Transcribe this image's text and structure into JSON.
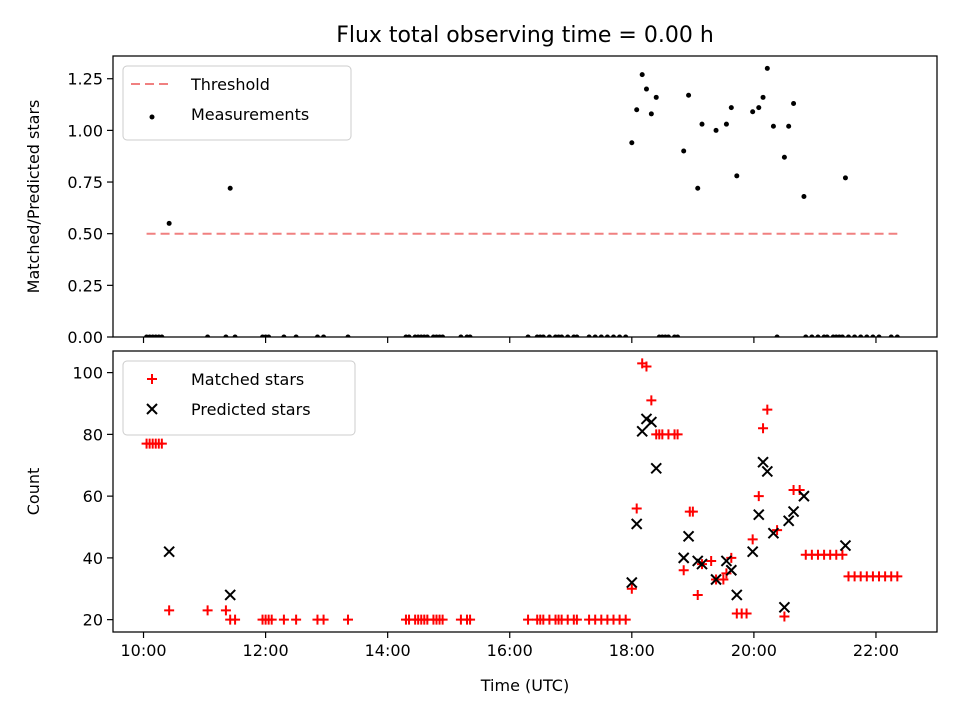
{
  "figure": {
    "title": "Flux total observing time = 0.00 h"
  },
  "chart_data": [
    {
      "type": "scatter",
      "ylabel": "Matched/Predicted stars",
      "xlabel": "",
      "xlim": [
        9.5,
        23.0
      ],
      "ylim": [
        0.0,
        1.36
      ],
      "yticks": [
        0.0,
        0.25,
        0.5,
        0.75,
        1.0,
        1.25
      ],
      "ytick_labels": [
        "0.00",
        "0.25",
        "0.50",
        "0.75",
        "1.00",
        "1.25"
      ],
      "xticks": [
        10,
        12,
        14,
        16,
        18,
        20,
        22
      ],
      "show_xtick_labels": false,
      "grid": false,
      "legend": {
        "placement": "top-left"
      },
      "series": [
        {
          "name": "Threshold",
          "kind": "line",
          "style": "dashed",
          "color": "#f08080",
          "points": [
            [
              10.05,
              0.5
            ],
            [
              22.35,
              0.5
            ]
          ]
        },
        {
          "name": "Measurements",
          "kind": "scatter",
          "marker": "dot",
          "color": "#000000",
          "points": [
            [
              10.05,
              0
            ],
            [
              10.1,
              0
            ],
            [
              10.15,
              0
            ],
            [
              10.2,
              0
            ],
            [
              10.25,
              0
            ],
            [
              10.3,
              0
            ],
            [
              10.42,
              0.55
            ],
            [
              11.05,
              0
            ],
            [
              11.35,
              0
            ],
            [
              11.42,
              0.72
            ],
            [
              11.5,
              0
            ],
            [
              11.95,
              0
            ],
            [
              12.0,
              0
            ],
            [
              12.05,
              0
            ],
            [
              12.3,
              0
            ],
            [
              12.5,
              0
            ],
            [
              12.85,
              0
            ],
            [
              12.95,
              0
            ],
            [
              13.35,
              0
            ],
            [
              14.3,
              0
            ],
            [
              14.35,
              0
            ],
            [
              14.45,
              0
            ],
            [
              14.5,
              0
            ],
            [
              14.55,
              0
            ],
            [
              14.6,
              0
            ],
            [
              14.65,
              0
            ],
            [
              14.75,
              0
            ],
            [
              14.8,
              0
            ],
            [
              14.85,
              0
            ],
            [
              14.9,
              0
            ],
            [
              15.2,
              0
            ],
            [
              15.3,
              0
            ],
            [
              15.35,
              0
            ],
            [
              16.3,
              0
            ],
            [
              16.45,
              0
            ],
            [
              16.5,
              0
            ],
            [
              16.55,
              0
            ],
            [
              16.65,
              0
            ],
            [
              16.75,
              0
            ],
            [
              16.8,
              0
            ],
            [
              16.85,
              0
            ],
            [
              16.95,
              0
            ],
            [
              17.05,
              0
            ],
            [
              17.1,
              0
            ],
            [
              17.3,
              0
            ],
            [
              17.4,
              0
            ],
            [
              17.5,
              0
            ],
            [
              17.6,
              0
            ],
            [
              17.7,
              0
            ],
            [
              17.8,
              0
            ],
            [
              17.9,
              0
            ],
            [
              18.0,
              0.94
            ],
            [
              18.08,
              1.1
            ],
            [
              18.17,
              1.27
            ],
            [
              18.24,
              1.2
            ],
            [
              18.32,
              1.08
            ],
            [
              18.4,
              1.16
            ],
            [
              18.45,
              0
            ],
            [
              18.5,
              0
            ],
            [
              18.55,
              0
            ],
            [
              18.6,
              0
            ],
            [
              18.7,
              0
            ],
            [
              18.75,
              0
            ],
            [
              18.85,
              0.9
            ],
            [
              18.93,
              1.17
            ],
            [
              19.08,
              0.72
            ],
            [
              19.15,
              1.03
            ],
            [
              19.38,
              1.0
            ],
            [
              19.55,
              1.03
            ],
            [
              19.63,
              1.11
            ],
            [
              19.72,
              0.78
            ],
            [
              19.98,
              1.09
            ],
            [
              20.08,
              1.11
            ],
            [
              20.15,
              1.16
            ],
            [
              20.22,
              1.3
            ],
            [
              20.32,
              1.02
            ],
            [
              20.5,
              0.87
            ],
            [
              20.57,
              1.02
            ],
            [
              20.65,
              1.13
            ],
            [
              20.82,
              0.68
            ],
            [
              21.5,
              0.77
            ],
            [
              20.38,
              0
            ],
            [
              20.85,
              0
            ],
            [
              20.95,
              0
            ],
            [
              21.05,
              0
            ],
            [
              21.15,
              0
            ],
            [
              21.2,
              0
            ],
            [
              21.3,
              0
            ],
            [
              21.35,
              0
            ],
            [
              21.4,
              0
            ],
            [
              21.45,
              0
            ],
            [
              21.55,
              0
            ],
            [
              21.65,
              0
            ],
            [
              21.75,
              0
            ],
            [
              21.85,
              0
            ],
            [
              21.95,
              0
            ],
            [
              22.05,
              0
            ],
            [
              22.25,
              0
            ],
            [
              22.35,
              0
            ]
          ]
        }
      ]
    },
    {
      "type": "scatter",
      "xlabel": "Time (UTC)",
      "ylabel": "Count",
      "xlim": [
        9.5,
        23.0
      ],
      "ylim": [
        16.0,
        107.0
      ],
      "yticks": [
        20,
        40,
        60,
        80,
        100
      ],
      "ytick_labels": [
        "20",
        "40",
        "60",
        "80",
        "100"
      ],
      "xticks": [
        10,
        12,
        14,
        16,
        18,
        20,
        22
      ],
      "xtick_labels": [
        "10:00",
        "12:00",
        "14:00",
        "16:00",
        "18:00",
        "20:00",
        "22:00"
      ],
      "grid": false,
      "legend": {
        "placement": "top-left"
      },
      "series": [
        {
          "name": "Matched stars",
          "kind": "scatter",
          "marker": "plus",
          "color": "#ff0000",
          "points": [
            [
              10.05,
              77
            ],
            [
              10.1,
              77
            ],
            [
              10.15,
              77
            ],
            [
              10.2,
              77
            ],
            [
              10.25,
              77
            ],
            [
              10.3,
              77
            ],
            [
              10.42,
              23
            ],
            [
              11.05,
              23
            ],
            [
              11.35,
              23
            ],
            [
              11.42,
              20
            ],
            [
              11.5,
              20
            ],
            [
              11.95,
              20
            ],
            [
              12.0,
              20
            ],
            [
              12.05,
              20
            ],
            [
              12.1,
              20
            ],
            [
              12.3,
              20
            ],
            [
              12.5,
              20
            ],
            [
              12.85,
              20
            ],
            [
              12.95,
              20
            ],
            [
              13.35,
              20
            ],
            [
              14.3,
              20
            ],
            [
              14.35,
              20
            ],
            [
              14.45,
              20
            ],
            [
              14.5,
              20
            ],
            [
              14.55,
              20
            ],
            [
              14.6,
              20
            ],
            [
              14.65,
              20
            ],
            [
              14.75,
              20
            ],
            [
              14.8,
              20
            ],
            [
              14.85,
              20
            ],
            [
              14.9,
              20
            ],
            [
              15.2,
              20
            ],
            [
              15.3,
              20
            ],
            [
              15.35,
              20
            ],
            [
              16.3,
              20
            ],
            [
              16.45,
              20
            ],
            [
              16.5,
              20
            ],
            [
              16.55,
              20
            ],
            [
              16.65,
              20
            ],
            [
              16.75,
              20
            ],
            [
              16.8,
              20
            ],
            [
              16.85,
              20
            ],
            [
              16.95,
              20
            ],
            [
              17.05,
              20
            ],
            [
              17.1,
              20
            ],
            [
              17.3,
              20
            ],
            [
              17.4,
              20
            ],
            [
              17.5,
              20
            ],
            [
              17.6,
              20
            ],
            [
              17.7,
              20
            ],
            [
              17.8,
              20
            ],
            [
              17.9,
              20
            ],
            [
              18.0,
              30
            ],
            [
              18.08,
              56
            ],
            [
              18.17,
              103
            ],
            [
              18.24,
              102
            ],
            [
              18.32,
              91
            ],
            [
              18.4,
              80
            ],
            [
              18.45,
              80
            ],
            [
              18.5,
              80
            ],
            [
              18.6,
              80
            ],
            [
              18.7,
              80
            ],
            [
              18.75,
              80
            ],
            [
              18.85,
              36
            ],
            [
              18.95,
              55
            ],
            [
              19.0,
              55
            ],
            [
              19.08,
              28
            ],
            [
              19.15,
              38
            ],
            [
              19.3,
              39
            ],
            [
              19.38,
              33
            ],
            [
              19.5,
              33
            ],
            [
              19.55,
              35
            ],
            [
              19.63,
              40
            ],
            [
              19.72,
              22
            ],
            [
              19.8,
              22
            ],
            [
              19.88,
              22
            ],
            [
              19.98,
              46
            ],
            [
              20.08,
              60
            ],
            [
              20.15,
              82
            ],
            [
              20.22,
              88
            ],
            [
              20.38,
              49
            ],
            [
              20.5,
              21
            ],
            [
              20.65,
              62
            ],
            [
              20.75,
              62
            ],
            [
              20.85,
              41
            ],
            [
              20.95,
              41
            ],
            [
              21.05,
              41
            ],
            [
              21.15,
              41
            ],
            [
              21.25,
              41
            ],
            [
              21.35,
              41
            ],
            [
              21.45,
              41
            ],
            [
              21.55,
              34
            ],
            [
              21.65,
              34
            ],
            [
              21.75,
              34
            ],
            [
              21.85,
              34
            ],
            [
              21.95,
              34
            ],
            [
              22.05,
              34
            ],
            [
              22.15,
              34
            ],
            [
              22.25,
              34
            ],
            [
              22.35,
              34
            ]
          ]
        },
        {
          "name": "Predicted stars",
          "kind": "scatter",
          "marker": "x",
          "color": "#000000",
          "points": [
            [
              10.42,
              42
            ],
            [
              11.42,
              28
            ],
            [
              18.0,
              32
            ],
            [
              18.08,
              51
            ],
            [
              18.17,
              81
            ],
            [
              18.24,
              85
            ],
            [
              18.32,
              84
            ],
            [
              18.4,
              69
            ],
            [
              18.85,
              40
            ],
            [
              18.93,
              47
            ],
            [
              19.08,
              39
            ],
            [
              19.15,
              38
            ],
            [
              19.38,
              33
            ],
            [
              19.55,
              39
            ],
            [
              19.63,
              36
            ],
            [
              19.72,
              28
            ],
            [
              19.98,
              42
            ],
            [
              20.08,
              54
            ],
            [
              20.15,
              71
            ],
            [
              20.22,
              68
            ],
            [
              20.32,
              48
            ],
            [
              20.5,
              24
            ],
            [
              20.57,
              52
            ],
            [
              20.65,
              55
            ],
            [
              20.82,
              60
            ],
            [
              21.5,
              44
            ]
          ]
        }
      ]
    }
  ]
}
